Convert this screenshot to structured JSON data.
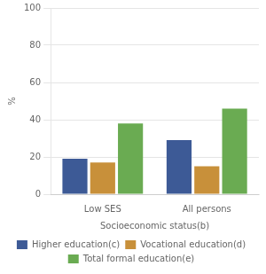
{
  "chart_data": {
    "type": "bar",
    "categories": [
      "Low SES",
      "All persons"
    ],
    "series": [
      {
        "name": "Higher education(c)",
        "color": "#3D5A96",
        "values": [
          19,
          29
        ]
      },
      {
        "name": "Vocational education(d)",
        "color": "#C8903A",
        "values": [
          17,
          15
        ]
      },
      {
        "name": "Total formal education(e)",
        "color": "#6AAB52",
        "values": [
          38,
          46
        ]
      }
    ],
    "xlabel": "Socioeconomic status(b)",
    "ylabel": "%",
    "ylim": [
      0,
      100
    ],
    "yticks": [
      0,
      20,
      40,
      60,
      80,
      100
    ],
    "grid": true,
    "legend": "bottom"
  }
}
